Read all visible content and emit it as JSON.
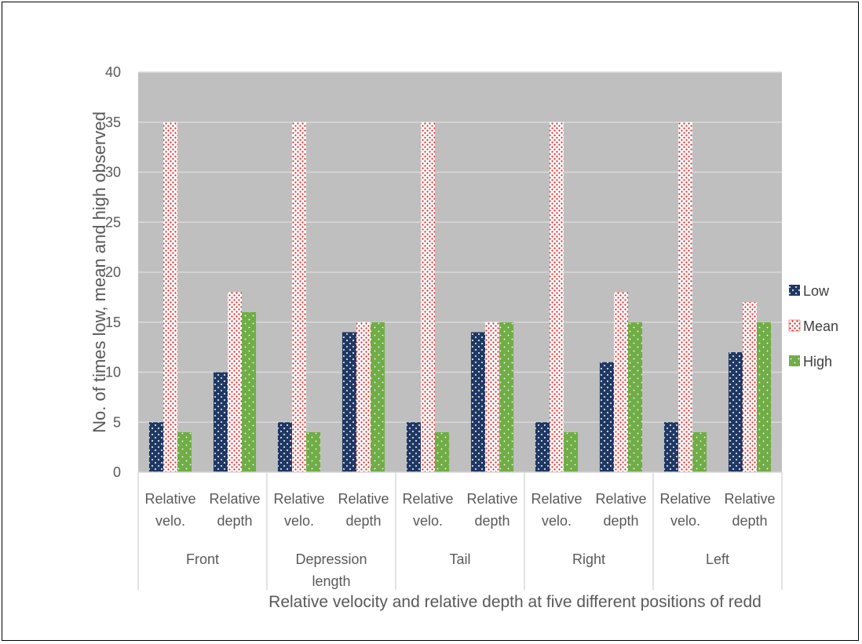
{
  "chart_data": {
    "type": "bar",
    "title": "",
    "xlabel": "Relative velocity and relative depth  at five  different positions of redd",
    "ylabel": "No. of times low, mean and high observed",
    "ylim": [
      0,
      40
    ],
    "yticks": [
      0,
      5,
      10,
      15,
      20,
      25,
      30,
      35,
      40
    ],
    "grid": true,
    "legend_position": "right",
    "groups": [
      {
        "label": [
          "Front"
        ],
        "sub": [
          "Relative velo.",
          "Relative depth"
        ]
      },
      {
        "label": [
          "Depression",
          "length"
        ],
        "sub": [
          "Relative velo.",
          "Relative depth"
        ]
      },
      {
        "label": [
          "Tail"
        ],
        "sub": [
          "Relative velo.",
          "Relative depth"
        ]
      },
      {
        "label": [
          "Right"
        ],
        "sub": [
          "Relative velo.",
          "Relative depth"
        ]
      },
      {
        "label": [
          "Left"
        ],
        "sub": [
          "Relative velo.",
          "Relative depth"
        ]
      }
    ],
    "categories": [
      "Front - Relative velo.",
      "Front - Relative depth",
      "Depression length - Relative velo.",
      "Depression length - Relative depth",
      "Tail - Relative velo.",
      "Tail - Relative depth",
      "Right - Relative velo.",
      "Right - Relative depth",
      "Left - Relative velo.",
      "Left - Relative depth"
    ],
    "series": [
      {
        "name": "Low",
        "color": "#1f3864",
        "values": [
          5,
          10,
          5,
          14,
          5,
          14,
          5,
          11,
          5,
          12
        ]
      },
      {
        "name": "Mean",
        "color": "#ff0000",
        "values": [
          35,
          18,
          35,
          15,
          35,
          15,
          35,
          18,
          35,
          17
        ]
      },
      {
        "name": "High",
        "color": "#70ad47",
        "values": [
          4,
          16,
          4,
          15,
          4,
          15,
          4,
          15,
          4,
          15
        ]
      }
    ]
  }
}
